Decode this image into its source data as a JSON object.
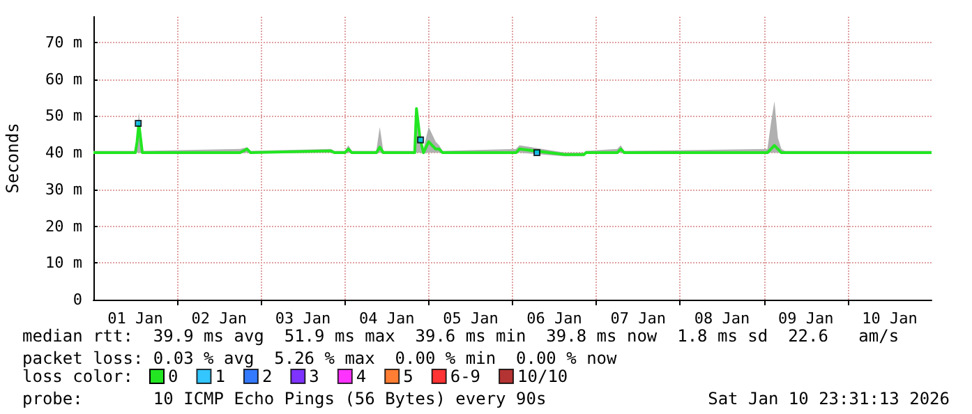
{
  "chart_data": {
    "type": "line",
    "ylabel": "Seconds",
    "legend_title": "loss color:",
    "legend": "bottom",
    "grid": true,
    "marker": "none",
    "line_style": "solid",
    "xlim": [
      "2026-01-01T00:00",
      "2026-01-11T00:00"
    ],
    "xticks": [
      {
        "value": "2026-01-01T12:00",
        "label": "01 Jan"
      },
      {
        "value": "2026-01-02T00:00",
        "label": null
      },
      {
        "value": "2026-01-02T12:00",
        "label": "02 Jan"
      },
      {
        "value": "2026-01-03T00:00",
        "label": null
      },
      {
        "value": "2026-01-03T12:00",
        "label": "03 Jan"
      },
      {
        "value": "2026-01-04T00:00",
        "label": null
      },
      {
        "value": "2026-01-04T12:00",
        "label": "04 Jan"
      },
      {
        "value": "2026-01-05T00:00",
        "label": null
      },
      {
        "value": "2026-01-05T12:00",
        "label": "05 Jan"
      },
      {
        "value": "2026-01-06T00:00",
        "label": null
      },
      {
        "value": "2026-01-06T12:00",
        "label": "06 Jan"
      },
      {
        "value": "2026-01-07T00:00",
        "label": null
      },
      {
        "value": "2026-01-07T12:00",
        "label": "07 Jan"
      },
      {
        "value": "2026-01-08T00:00",
        "label": null
      },
      {
        "value": "2026-01-08T12:00",
        "label": "08 Jan"
      },
      {
        "value": "2026-01-09T00:00",
        "label": null
      },
      {
        "value": "2026-01-09T12:00",
        "label": "09 Jan"
      },
      {
        "value": "2026-01-10T00:00",
        "label": null
      },
      {
        "value": "2026-01-10T12:00",
        "label": "10 Jan"
      }
    ],
    "ylim": [
      0,
      77
    ],
    "yticks": [
      {
        "value": 0,
        "label": "0"
      },
      {
        "value": 10,
        "label": "10 m"
      },
      {
        "value": 20,
        "label": "20 m"
      },
      {
        "value": 30,
        "label": "30 m"
      },
      {
        "value": 40,
        "label": "40 m"
      },
      {
        "value": 50,
        "label": "50 m"
      },
      {
        "value": 60,
        "label": "60 m"
      },
      {
        "value": 70,
        "label": "70 m"
      }
    ],
    "series": [
      {
        "name": "0",
        "color": "#22e622",
        "x": [
          "2026-01-01T00:00",
          "2026-01-01T12:00",
          "2026-01-01T12:30",
          "2026-01-01T13:00",
          "2026-01-01T14:00",
          "2026-01-02T18:00",
          "2026-01-02T20:00",
          "2026-01-02T21:00",
          "2026-01-03T20:00",
          "2026-01-03T21:00",
          "2026-01-04T00:00",
          "2026-01-04T01:00",
          "2026-01-04T02:00",
          "2026-01-04T09:00",
          "2026-01-04T10:00",
          "2026-01-04T11:00",
          "2026-01-04T20:00",
          "2026-01-04T20:30",
          "2026-01-04T21:30",
          "2026-01-04T22:30",
          "2026-01-05T00:00",
          "2026-01-05T01:00",
          "2026-01-05T02:00",
          "2026-01-05T03:00",
          "2026-01-05T04:00",
          "2026-01-06T01:00",
          "2026-01-06T02:00",
          "2026-01-06T15:00",
          "2026-01-06T20:30",
          "2026-01-06T21:00",
          "2026-01-07T06:00",
          "2026-01-07T07:00",
          "2026-01-07T08:00",
          "2026-01-09T01:00",
          "2026-01-09T02:00",
          "2026-01-09T03:00",
          "2026-01-09T04:00",
          "2026-01-09T05:00",
          "2026-01-09T06:00",
          "2026-01-11T00:00"
        ],
        "values": [
          40,
          40,
          43,
          48,
          40,
          40,
          41,
          40,
          40.5,
          40,
          40,
          41,
          40,
          40,
          41.5,
          40,
          40,
          52,
          44,
          40,
          43,
          42,
          41,
          41,
          40,
          40,
          41,
          39.5,
          39.5,
          40,
          40,
          41,
          40,
          40,
          41,
          42,
          41,
          40,
          40,
          40
        ],
        "lower": [
          39.8,
          39.8,
          40,
          40,
          39.8,
          39.8,
          40,
          39.8,
          40,
          39.8,
          39.8,
          40,
          39.8,
          39.8,
          40,
          39.8,
          39.8,
          40,
          40,
          39.8,
          40,
          40,
          40,
          40,
          39.8,
          39.8,
          40,
          39,
          39,
          39.8,
          39.8,
          40,
          39.8,
          39.8,
          40,
          40,
          40,
          39.8,
          39.8,
          39.8
        ],
        "upper": [
          40.5,
          40.5,
          44,
          51,
          40.5,
          41,
          41.5,
          40.5,
          41,
          40.5,
          40.5,
          42,
          40.5,
          40.5,
          47,
          40.5,
          40.5,
          52,
          45,
          41,
          47,
          45,
          43,
          42,
          40.5,
          41,
          42,
          40,
          40,
          40.5,
          41,
          42,
          40.5,
          41,
          48,
          54,
          44,
          41,
          40.5,
          40.5
        ]
      },
      {
        "name": "1",
        "type": "scatter",
        "marker": "square",
        "color": "#00b8ff",
        "x": [
          "2026-01-01T12:50",
          "2026-01-04T21:40",
          "2026-01-06T07:00"
        ],
        "values": [
          48,
          43.5,
          40
        ]
      },
      {
        "name": "2",
        "type": "scatter",
        "marker": "square",
        "color": "#0059ff"
      },
      {
        "name": "3",
        "type": "scatter",
        "marker": "square",
        "color": "#5e00ff"
      },
      {
        "name": "4",
        "type": "scatter",
        "marker": "square",
        "color": "#ff00ff"
      },
      {
        "name": "5",
        "type": "scatter",
        "marker": "square",
        "color": "#ff5e00"
      },
      {
        "name": "6-9",
        "type": "scatter",
        "marker": "square",
        "color": "#ff0000"
      },
      {
        "name": "10/10",
        "type": "scatter",
        "marker": "square",
        "color": "#a10000"
      }
    ],
    "annotations": [
      "median rtt:  39.9 ms avg  51.9 ms max  39.6 ms min  39.8 ms now  1.8 ms sd  22.6   am/s",
      "packet loss: 0.03 % avg  5.26 % max  0.00 % min  0.00 % now",
      "probe:       10 ICMP Echo Pings (56 Bytes) every 90s",
      "Sat Jan 10 23:31:13 2026"
    ]
  }
}
